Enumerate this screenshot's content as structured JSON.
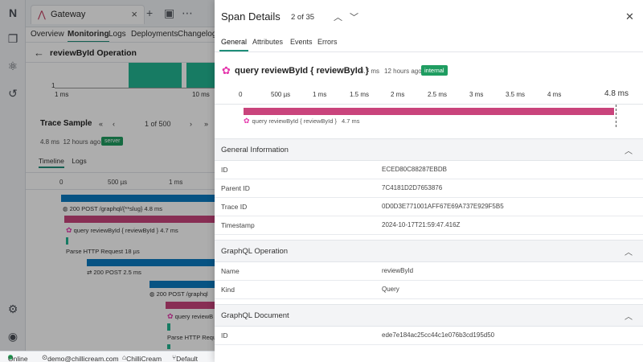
{
  "app": {
    "window_tab": "Gateway",
    "nav_tabs": [
      "Overview",
      "Monitoring",
      "Logs",
      "Deployments",
      "Changelog"
    ],
    "operation_title": "reviewById Operation",
    "histogram": {
      "y_label": "1",
      "x_labels": [
        "1 ms",
        "10 ms"
      ]
    },
    "trace_sample": {
      "title": "Trace Sample",
      "pager": "1 of 500",
      "duration": "4.8 ms",
      "ago": "12 hours ago",
      "badge": "server",
      "subtabs": [
        "Timeline",
        "Logs"
      ]
    },
    "timeline": {
      "scale": [
        "0",
        "500 µs",
        "1 ms"
      ],
      "rows": [
        {
          "text": "200   POST /graphql/{**slug}   4.8 ms"
        },
        {
          "text": "query reviewById { reviewById }   4.7 ms"
        },
        {
          "text": "Parse HTTP Request   18 µs"
        },
        {
          "text": "200   POST   2.5 ms"
        },
        {
          "text": "200   POST /graphql"
        },
        {
          "text": "query reviewB"
        },
        {
          "text": "Parse HTTP Reque"
        }
      ]
    }
  },
  "status_bar": {
    "status": "Online",
    "user": "demo@chillicream.com",
    "org": "ChilliCream",
    "branch": "Default"
  },
  "panel": {
    "title": "Span Details",
    "count": "2 of 35",
    "tabs": [
      "General",
      "Attributes",
      "Events",
      "Errors"
    ],
    "operation": {
      "name": "query reviewById { reviewById }",
      "duration": "4.7 ms",
      "ago": "12 hours ago",
      "badge": "internal"
    },
    "scale": [
      "0",
      "500 µs",
      "1 ms",
      "1.5 ms",
      "2 ms",
      "2.5 ms",
      "3 ms",
      "3.5 ms",
      "4 ms",
      "4.8 ms"
    ],
    "span_bar": {
      "label": "query reviewById { reviewById }",
      "duration": "4.7 ms",
      "fraction_of_total": 0.98
    },
    "sections": {
      "general": {
        "title": "General Information",
        "rows": [
          {
            "key": "ID",
            "value": "ECED80C88287EBDB"
          },
          {
            "key": "Parent ID",
            "value": "7C4181D2D7653876"
          },
          {
            "key": "Trace ID",
            "value": "0D0D3E771001AFF67E69A737E929F5B5"
          },
          {
            "key": "Timestamp",
            "value": "2024-10-17T21:59:47.416Z"
          }
        ]
      },
      "graphql_operation": {
        "title": "GraphQL Operation",
        "rows": [
          {
            "key": "Name",
            "value": "reviewById"
          },
          {
            "key": "Kind",
            "value": "Query"
          }
        ]
      },
      "graphql_document": {
        "title": "GraphQL Document",
        "rows": [
          {
            "key": "ID",
            "value": "ede7e184ac25cc44c1e076b3cd195d50"
          }
        ]
      }
    }
  },
  "colors": {
    "accent": "#1f8e79",
    "span_pink": "#c9447c",
    "span_blue": "#0b7bc2",
    "badge_green": "#1f9d61",
    "graphql": "#e535ab"
  }
}
